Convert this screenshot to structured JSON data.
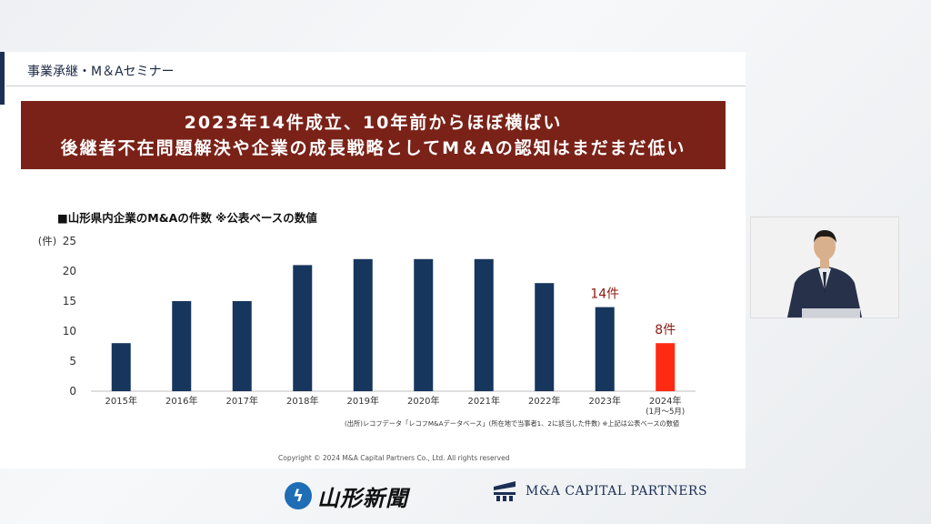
{
  "slide": {
    "header": "事業承継・M＆Aセミナー",
    "banner_line1": "2023年14件成立、10年前からほぼ横ばい",
    "banner_line2": "後継者不在問題解決や企業の成長戦略としてM＆Aの認知はまだまだ低い",
    "chart_heading": "■山形県内企業のM&Aの件数 ※公表ベースの数値",
    "source_note": "(出所)レコフデータ「レコフM&Aデータベース」(所在地で当事者1、2に該当した件数) ※上記は公表ベースの数値",
    "copyright": "Copyright © 2024 M&A Capital Partners Co., Ltd. All rights reserved"
  },
  "chart_data": {
    "type": "bar",
    "title": "■山形県内企業のM&Aの件数 ※公表ベースの数値",
    "ylabel": "(件)",
    "xlabel": "",
    "ylim": [
      0,
      25
    ],
    "yticks": [
      0,
      5,
      10,
      15,
      20,
      25
    ],
    "grid": false,
    "categories": [
      "2015年",
      "2016年",
      "2017年",
      "2018年",
      "2019年",
      "2020年",
      "2021年",
      "2022年",
      "2023年",
      "2024年"
    ],
    "category_sublabels": [
      "",
      "",
      "",
      "",
      "",
      "",
      "",
      "",
      "",
      "(1月〜5月)"
    ],
    "values": [
      8,
      15,
      15,
      21,
      22,
      22,
      22,
      18,
      14,
      8
    ],
    "bar_colors": [
      "#17365d",
      "#17365d",
      "#17365d",
      "#17365d",
      "#17365d",
      "#17365d",
      "#17365d",
      "#17365d",
      "#17365d",
      "#ff2a12"
    ],
    "annotations": [
      {
        "category": "2023年",
        "text": "14件",
        "color": "#8b1a10"
      },
      {
        "category": "2024年",
        "text": "8件",
        "color": "#8b1a10"
      }
    ]
  },
  "logos": {
    "yamagata": "山形新聞",
    "macp": "M&A CAPITAL PARTNERS"
  }
}
